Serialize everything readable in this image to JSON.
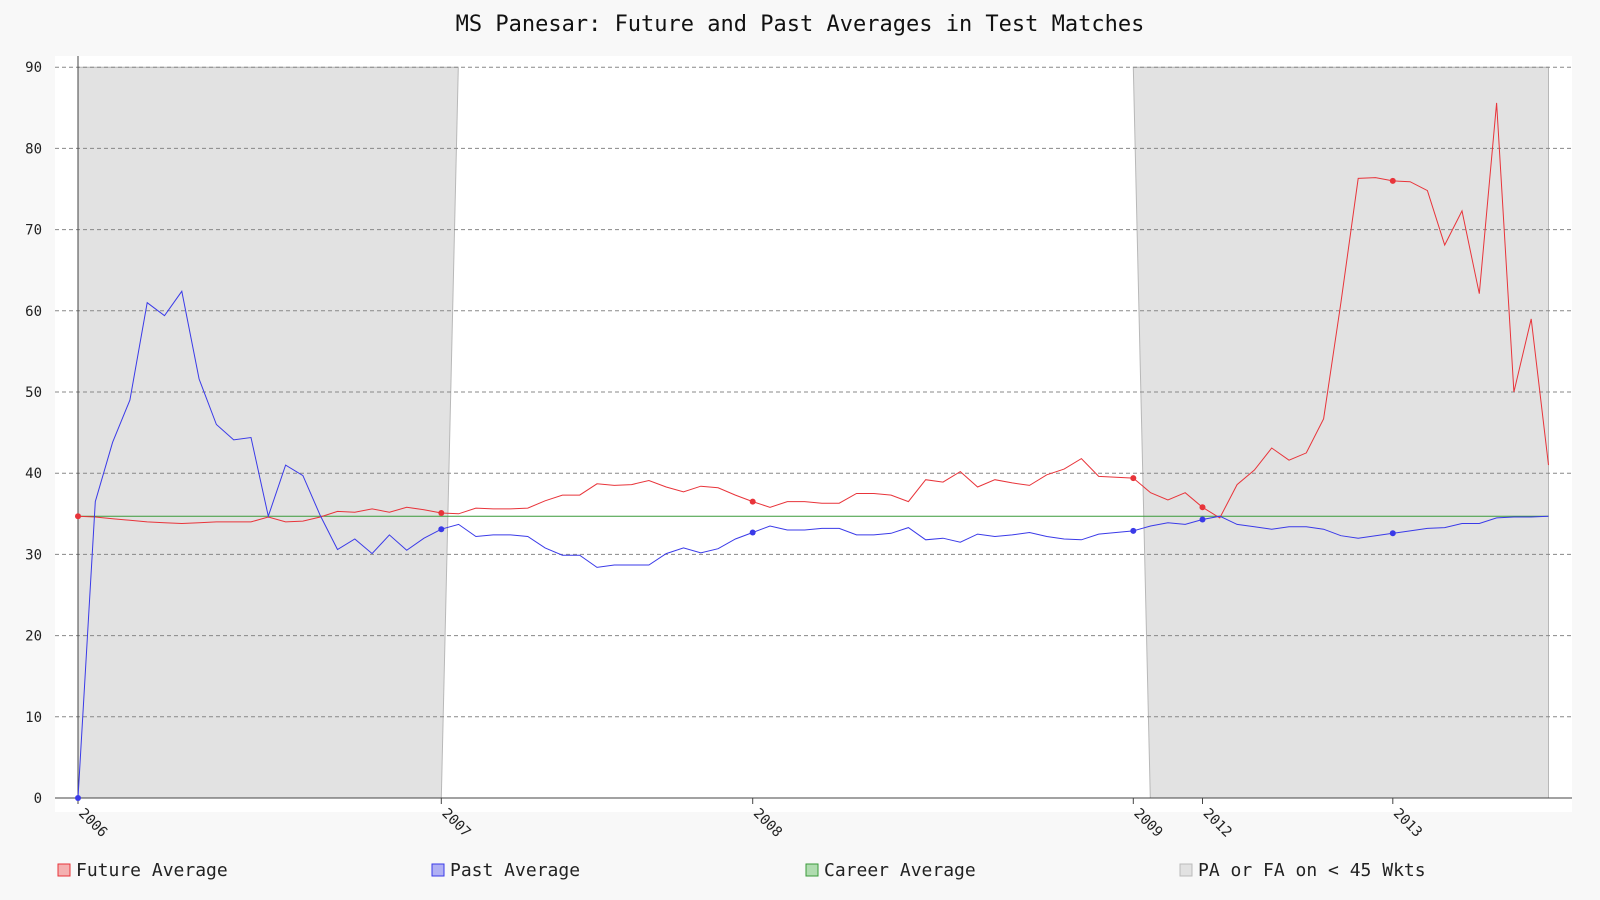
{
  "title": "MS Panesar: Future and Past Averages in Test Matches",
  "chart_data": {
    "type": "line",
    "title": "MS Panesar: Future and Past Averages in Test Matches",
    "xlabel": "",
    "ylabel": "",
    "ylim": [
      0,
      90
    ],
    "yticks": [
      0,
      10,
      20,
      30,
      40,
      50,
      60,
      70,
      80,
      90
    ],
    "grid": true,
    "legend_position": "bottom",
    "num_points": 86,
    "x_tick_labels": [
      {
        "label": "2006",
        "index": 0
      },
      {
        "label": "2007",
        "index": 21
      },
      {
        "label": "2008",
        "index": 39
      },
      {
        "label": "2009",
        "index": 61
      },
      {
        "label": "2012",
        "index": 65
      },
      {
        "label": "2013",
        "index": 76
      }
    ],
    "series": [
      {
        "name": "Future Average",
        "color": "#e8343a",
        "marker_indices": [
          0,
          21,
          39,
          61,
          65,
          76
        ],
        "values": [
          34.7,
          34.6,
          34.4,
          34.2,
          34.0,
          33.9,
          33.8,
          33.9,
          34.0,
          34.0,
          34.0,
          34.6,
          34.0,
          34.1,
          34.6,
          35.3,
          35.2,
          35.6,
          35.2,
          35.8,
          35.5,
          35.1,
          35.0,
          35.7,
          35.6,
          35.6,
          35.7,
          36.6,
          37.3,
          37.3,
          38.7,
          38.5,
          38.6,
          39.1,
          38.3,
          37.7,
          38.4,
          38.2,
          37.3,
          36.5,
          35.8,
          36.5,
          36.5,
          36.3,
          36.3,
          37.5,
          37.5,
          37.3,
          36.5,
          39.2,
          38.9,
          40.2,
          38.3,
          39.2,
          38.8,
          38.5,
          39.8,
          40.5,
          41.8,
          39.6,
          39.5,
          39.4,
          37.6,
          36.7,
          37.6,
          35.8,
          34.5,
          38.6,
          40.4,
          43.1,
          41.6,
          42.5,
          46.7,
          61.0,
          76.3,
          76.4,
          76.0,
          75.9,
          74.8,
          68.1,
          72.3,
          62.1,
          85.6,
          50.0,
          59.0,
          41.0
        ]
      },
      {
        "name": "Past Average",
        "color": "#3a3ae8",
        "marker_indices": [
          0,
          21,
          39,
          61,
          65,
          76
        ],
        "values": [
          0.0,
          36.5,
          43.8,
          49.0,
          61.0,
          59.4,
          62.4,
          51.6,
          46.0,
          44.1,
          44.4,
          34.7,
          41.0,
          39.7,
          34.8,
          30.6,
          31.9,
          30.1,
          32.4,
          30.5,
          32.0,
          33.1,
          33.7,
          32.2,
          32.4,
          32.4,
          32.2,
          30.8,
          29.9,
          29.9,
          28.4,
          28.7,
          28.7,
          28.7,
          30.1,
          30.8,
          30.2,
          30.7,
          31.9,
          32.7,
          33.5,
          33.0,
          33.0,
          33.2,
          33.2,
          32.4,
          32.4,
          32.6,
          33.3,
          31.8,
          32.0,
          31.5,
          32.5,
          32.2,
          32.4,
          32.7,
          32.2,
          31.9,
          31.8,
          32.5,
          32.7,
          32.9,
          33.5,
          33.9,
          33.7,
          34.3,
          34.7,
          33.7,
          33.4,
          33.1,
          33.4,
          33.4,
          33.1,
          32.3,
          32.0,
          32.3,
          32.6,
          32.9,
          33.2,
          33.3,
          33.8,
          33.8,
          34.5,
          34.6,
          34.6,
          34.7
        ]
      },
      {
        "name": "Career Average",
        "color": "#3a9a3a",
        "values_constant": 34.7
      }
    ],
    "shaded_regions": {
      "name": "PA or FA on < 45 Wkts",
      "color": "#e2e2e2",
      "regions": [
        {
          "start_index": 0,
          "end_index": 21
        },
        {
          "start_index": 61,
          "end_index": 85
        }
      ]
    }
  },
  "legend": [
    {
      "label": "Future Average",
      "fill": "#f4b0b0",
      "stroke": "#e8343a"
    },
    {
      "label": "Past Average",
      "fill": "#b0b0f4",
      "stroke": "#3a3ae8"
    },
    {
      "label": "Career Average",
      "fill": "#b0dcb0",
      "stroke": "#3a9a3a"
    },
    {
      "label": "PA or FA on < 45 Wkts",
      "fill": "#e2e2e2",
      "stroke": "#bbbbbb"
    }
  ]
}
